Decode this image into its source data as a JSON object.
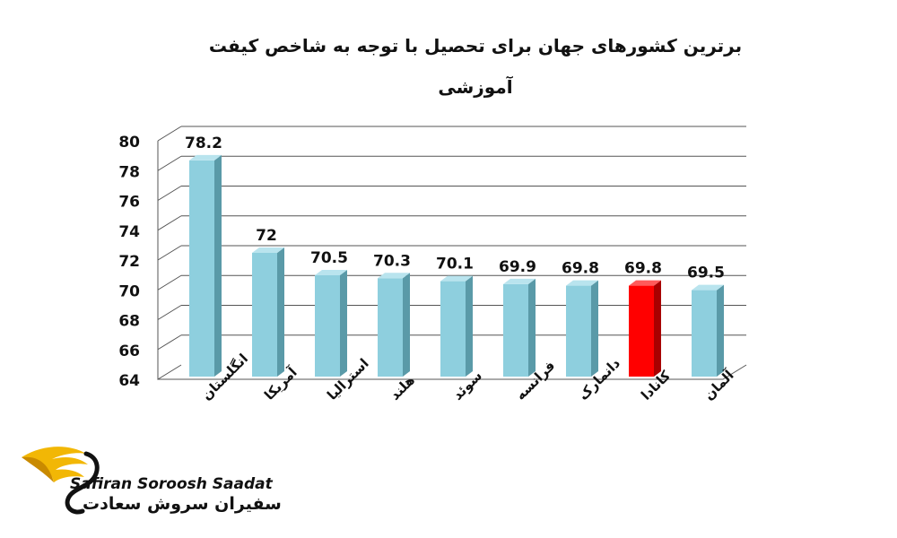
{
  "chart_data": {
    "type": "bar",
    "title": "برترین کشورهای جهان برای تحصیل با توجه به شاخص کیفت آموزشی",
    "categories": [
      "انگلستان",
      "آمریکا",
      "استرالیا",
      "هلند",
      "سوئد",
      "فرانسه",
      "دانمارک",
      "کانادا",
      "آلمان"
    ],
    "values": [
      78.2,
      72,
      70.5,
      70.3,
      70.1,
      69.9,
      69.8,
      69.8,
      69.5
    ],
    "data_labels": [
      "78.2",
      "72",
      "70.5",
      "70.3",
      "70.1",
      "69.9",
      "69.8",
      "69.8",
      "69.5"
    ],
    "highlight_category": "کانادا",
    "ylim": [
      64,
      80
    ],
    "yticks": [
      64,
      66,
      68,
      70,
      72,
      74,
      76,
      78,
      80
    ],
    "xlabel": "",
    "ylabel": "",
    "grid": true,
    "legend": false,
    "style": "3d-bars",
    "colors": {
      "bar": "#8ecfde",
      "bar_side": "#5a9aa8",
      "bar_top": "#b9e4ee",
      "highlight": "#ff0000",
      "highlight_side": "#a80000",
      "highlight_top": "#ff5a5a",
      "grid": "#555555",
      "text": "#111111"
    }
  },
  "brand": {
    "name_en": "Safiran Soroosh Saadat",
    "name_fa": "سفیران سروش سعادت",
    "logo_icon": "golden-wing-s-logo-icon",
    "colors": {
      "wing": "#f2b705",
      "wing_dark": "#c98a00",
      "text": "#111111"
    }
  }
}
